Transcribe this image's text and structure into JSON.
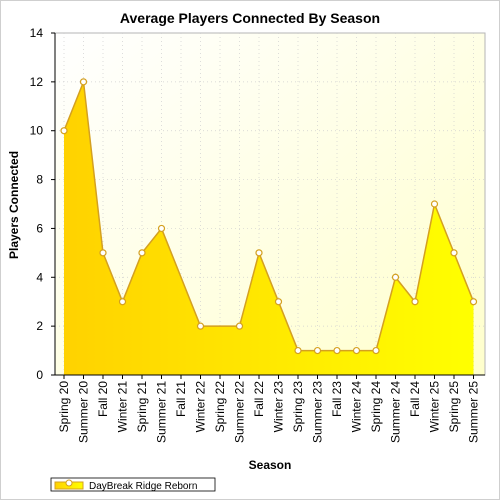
{
  "chart_data": {
    "type": "area",
    "title": "Average Players Connected By Season",
    "xlabel": "Season",
    "ylabel": "Players Connected",
    "ylim": [
      0,
      14
    ],
    "yticks": [
      0,
      2,
      4,
      6,
      8,
      10,
      12,
      14
    ],
    "grid": true,
    "legend_position": "bottom-left",
    "categories": [
      "Spring 20",
      "Summer 20",
      "Fall 20",
      "Winter 21",
      "Spring 21",
      "Summer 21",
      "Fall 21",
      "Winter 22",
      "Spring 22",
      "Summer 22",
      "Fall 22",
      "Winter 23",
      "Spring 23",
      "Summer 23",
      "Fall 23",
      "Winter 24",
      "Spring 24",
      "Summer 24",
      "Fall 24",
      "Winter 25",
      "Spring 25",
      "Summer 25"
    ],
    "series": [
      {
        "name": "DayBreak Ridge Reborn",
        "values": [
          10,
          12,
          5,
          3,
          5,
          6,
          null,
          2,
          null,
          2,
          5,
          3,
          1,
          1,
          1,
          1,
          1,
          4,
          3,
          7,
          5,
          3
        ]
      }
    ],
    "colors": {
      "fill_bottom": "#ffe000",
      "fill_top": "#ffd000",
      "line": "#d4a020",
      "marker_fill": "#ffffff",
      "plot_bg": "#ffffe6",
      "grid": "#cfcfcf"
    }
  }
}
